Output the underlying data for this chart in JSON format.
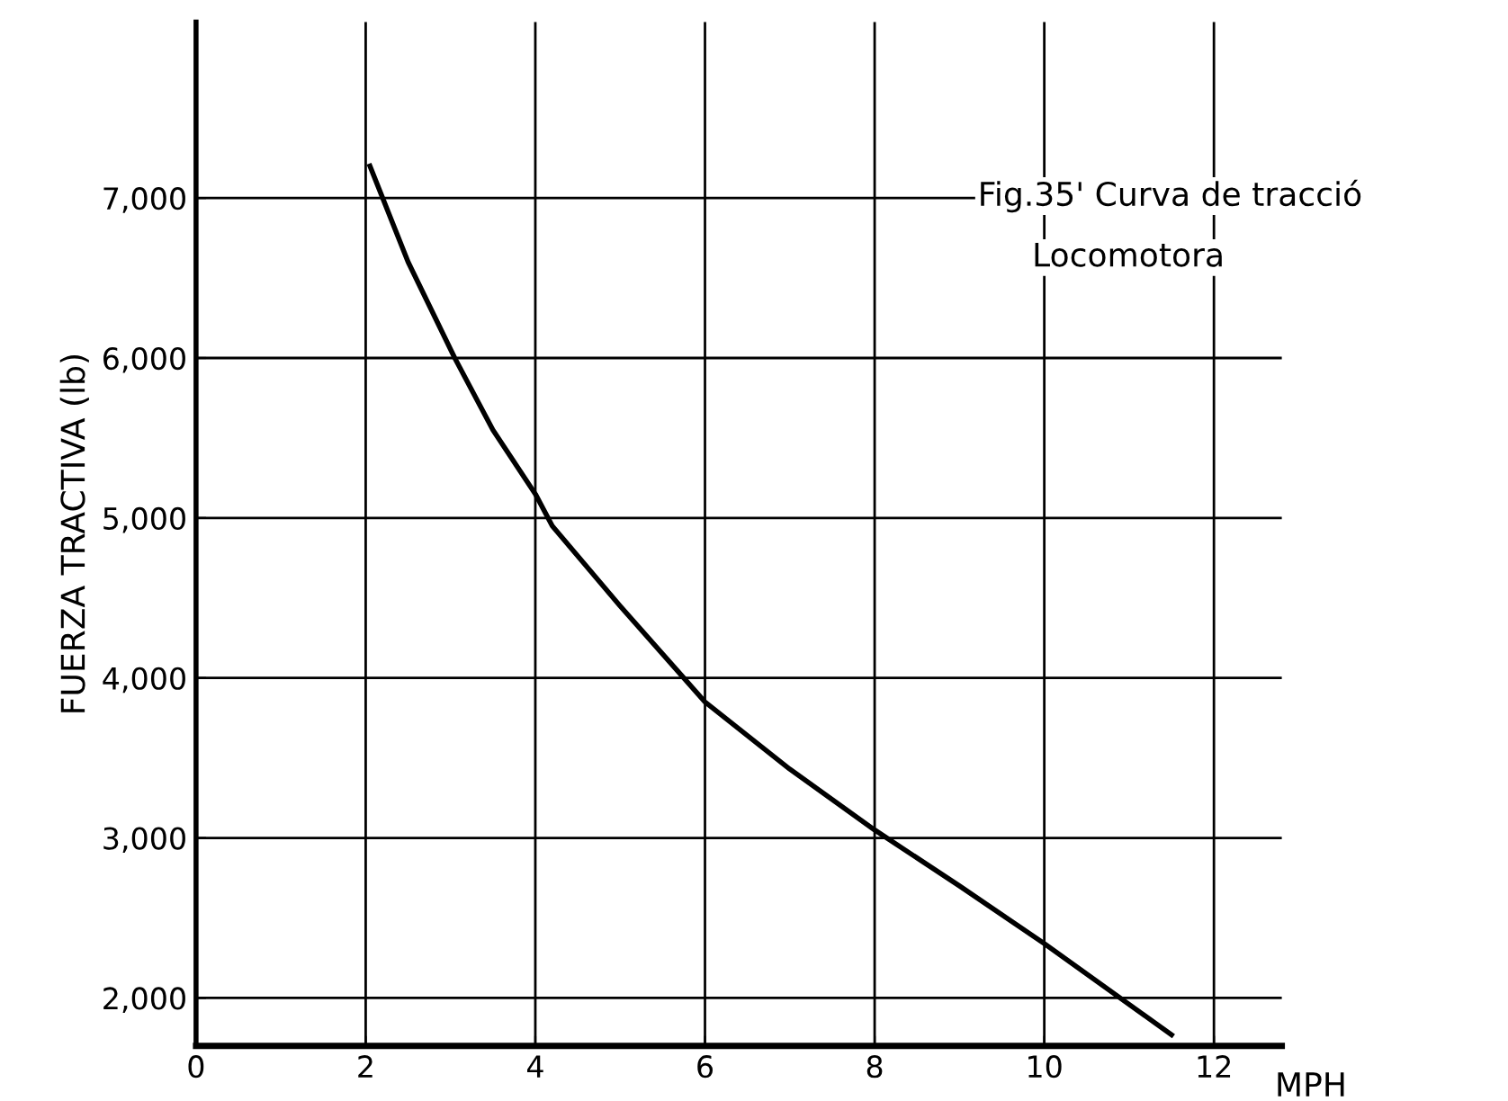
{
  "chart_data": {
    "type": "line",
    "ylabel": "FUERZA TRACTIVA (lb)",
    "xlabel": "MPH",
    "annotations": [
      "Fig.35' Curva de tracció",
      "Locomotora"
    ],
    "x": [
      2.05,
      2.5,
      3.05,
      3.5,
      4,
      4.2,
      5,
      6,
      7,
      8,
      9,
      10,
      11.5
    ],
    "series": [
      {
        "color": "#000000",
        "values": [
          7200,
          6600,
          6000,
          5550,
          5150,
          4950,
          4450,
          3850,
          3430,
          3050,
          2700,
          2340,
          1770
        ]
      }
    ],
    "xlim": [
      0,
      12.8
    ],
    "ylim": [
      1700,
      8100
    ],
    "xticks": [
      0,
      2,
      4,
      6,
      8,
      10,
      12
    ],
    "yticks": [
      {
        "value": 2000,
        "label": "2,000"
      },
      {
        "value": 3000,
        "label": "3,000"
      },
      {
        "value": 4000,
        "label": "4,000"
      },
      {
        "value": 5000,
        "label": "5,000"
      },
      {
        "value": 6000,
        "label": "6,000"
      },
      {
        "value": 7000,
        "label": "7,000"
      }
    ],
    "grid": true,
    "marker": "none",
    "line_style": "solid",
    "legend": false
  }
}
